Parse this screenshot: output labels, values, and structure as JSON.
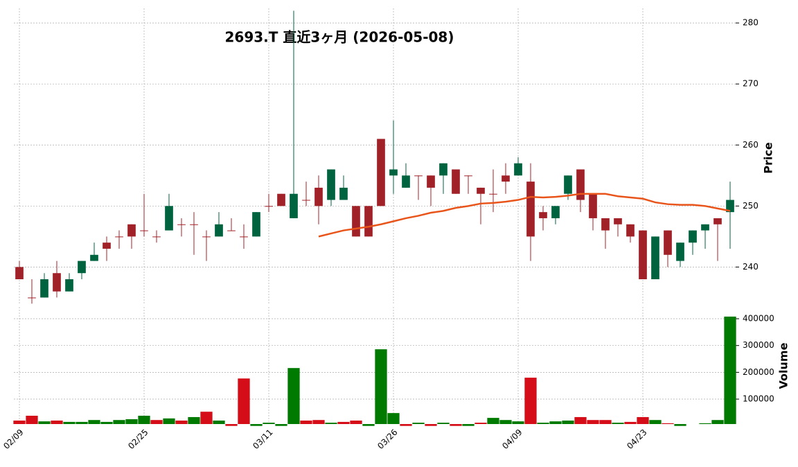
{
  "chart_data": [
    {
      "type": "candlestick",
      "title": "2693.T  直近3ヶ月  (2026-05-08)",
      "ylabel": "Price",
      "categories": [
        "02/09",
        null,
        null,
        null,
        null,
        null,
        null,
        null,
        null,
        null,
        "02/25",
        null,
        null,
        null,
        null,
        null,
        null,
        null,
        null,
        null,
        "03/11",
        null,
        null,
        null,
        null,
        null,
        null,
        null,
        null,
        null,
        "03/26",
        null,
        null,
        null,
        null,
        null,
        null,
        null,
        null,
        null,
        "04/09",
        null,
        null,
        null,
        null,
        null,
        null,
        null,
        null,
        null,
        "04/23",
        null,
        null,
        null,
        null,
        null,
        null,
        null
      ],
      "open": [
        240,
        235,
        235,
        239,
        236,
        239,
        241,
        244,
        245,
        247,
        246,
        245,
        246,
        247,
        247,
        245,
        245,
        246,
        245,
        245,
        250,
        252,
        248,
        251,
        253,
        251,
        251,
        250,
        250,
        261,
        255,
        253,
        255,
        255,
        255,
        256,
        255,
        253,
        252,
        255,
        255,
        254,
        249,
        248,
        252,
        256,
        252,
        248,
        248,
        247,
        246,
        238,
        246,
        241,
        244,
        246,
        248,
        249
      ],
      "high": [
        241,
        238,
        239,
        241,
        239,
        241,
        244,
        245,
        246,
        247,
        252,
        246,
        252,
        248,
        249,
        246,
        249,
        248,
        247,
        249,
        252,
        252,
        282,
        254,
        255,
        256,
        255,
        250,
        250,
        261,
        264,
        257,
        255,
        255,
        257,
        256,
        255,
        253,
        256,
        257,
        258,
        257,
        250,
        250,
        255,
        256,
        252,
        248,
        248,
        247,
        246,
        245,
        246,
        244,
        246,
        247,
        248,
        254
      ],
      "low": [
        238,
        234,
        235,
        235,
        236,
        238,
        241,
        241,
        243,
        243,
        245,
        244,
        246,
        245,
        242,
        241,
        245,
        246,
        243,
        245,
        249,
        250,
        248,
        250,
        247,
        250,
        251,
        245,
        245,
        250,
        252,
        253,
        251,
        250,
        252,
        252,
        252,
        247,
        249,
        252,
        255,
        241,
        246,
        247,
        251,
        249,
        246,
        243,
        245,
        244,
        238,
        238,
        240,
        240,
        242,
        243,
        241,
        243
      ],
      "close": [
        238,
        234.9,
        238,
        236,
        238,
        241,
        242,
        243,
        245,
        245,
        246,
        245,
        250,
        247,
        247,
        245,
        247,
        246,
        245,
        249,
        250,
        250,
        252,
        251,
        250,
        256,
        253,
        245,
        245,
        250,
        256,
        255,
        255,
        253,
        257,
        252,
        255,
        252,
        252,
        254,
        257,
        245,
        248,
        250,
        255,
        251,
        248,
        246,
        247,
        245,
        238,
        245,
        242,
        244,
        246,
        247,
        247,
        251
      ],
      "colors": {
        "up": "#006340",
        "down": "#a02128"
      },
      "line": {
        "color": "#e8541a",
        "values": [
          null,
          null,
          null,
          null,
          null,
          null,
          null,
          null,
          null,
          null,
          null,
          null,
          null,
          null,
          null,
          null,
          null,
          null,
          null,
          null,
          null,
          null,
          null,
          null,
          245.0,
          245.5,
          246.0,
          246.3,
          246.6,
          247.0,
          247.5,
          248.0,
          248.4,
          248.9,
          249.2,
          249.7,
          250.0,
          250.4,
          250.5,
          250.7,
          251.0,
          251.5,
          251.4,
          251.5,
          251.7,
          252.0,
          252.0,
          252.0,
          251.6,
          251.4,
          251.2,
          250.6,
          250.3,
          250.2,
          250.2,
          250.0,
          249.6,
          249.2
        ]
      },
      "ylim": [
        233.8,
        282.4
      ],
      "yticks": [
        240,
        250,
        260,
        270,
        280
      ],
      "grid": true
    },
    {
      "type": "bar",
      "ylabel": "Volume",
      "values": [
        20000,
        38000,
        17000,
        20000,
        15000,
        15000,
        22000,
        15000,
        22000,
        25000,
        38000,
        22000,
        28000,
        20000,
        33000,
        53000,
        20000,
        0,
        177000,
        0,
        12000,
        0,
        216000,
        20000,
        22000,
        12000,
        15000,
        20000,
        0,
        286000,
        48000,
        0,
        12000,
        0,
        12000,
        0,
        0,
        12000,
        30000,
        22000,
        17000,
        180000,
        12000,
        17000,
        20000,
        33000,
        22000,
        22000,
        12000,
        15000,
        33000,
        22000,
        10000,
        0,
        7000,
        10000,
        22000,
        408000
      ],
      "colors": {
        "up": "#007a00",
        "down": "#d50d18"
      },
      "ylim": [
        7000,
        444000
      ],
      "yticks": [
        100000,
        200000,
        300000,
        400000
      ],
      "grid": true
    }
  ]
}
